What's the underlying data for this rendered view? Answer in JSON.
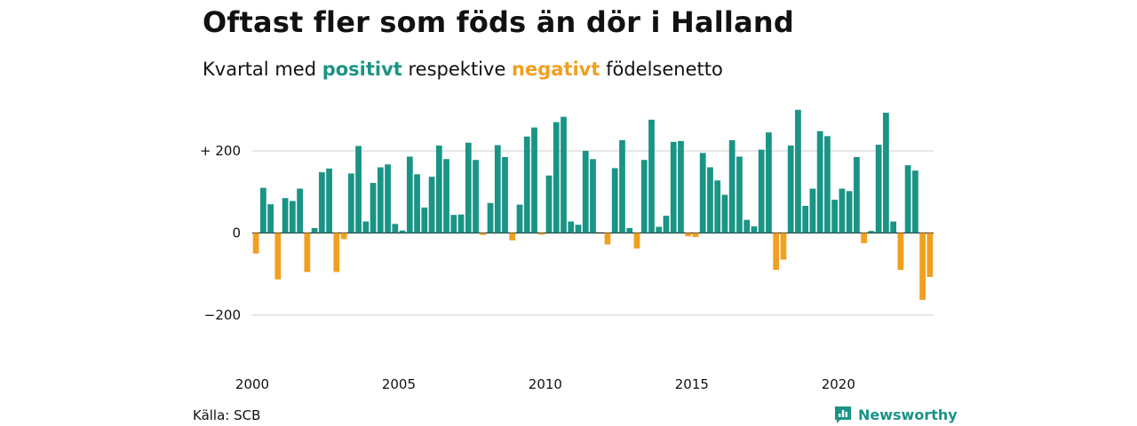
{
  "title": "Oftast fler som föds än dör i Halland",
  "subtitle": {
    "prefix": "Kvartal med ",
    "positive_word": "positivt",
    "middle": " respektive ",
    "negative_word": "negativt",
    "suffix": " födelsenetto"
  },
  "source": "Källa: SCB",
  "brand": "Newsworthy",
  "colors": {
    "positive": "#1a9485",
    "negative": "#f0a020",
    "grid": "#dddddd",
    "zero": "#222222"
  },
  "chart_data": {
    "type": "bar",
    "x_start": 2000,
    "period": "quarter",
    "ylim": [
      -300,
      330
    ],
    "yticks": [
      {
        "value": 200,
        "label": "+ 200"
      },
      {
        "value": 0,
        "label": "0"
      },
      {
        "value": -200,
        "label": "−200"
      }
    ],
    "xticks": [
      {
        "value": 2000,
        "label": "2000"
      },
      {
        "value": 2005,
        "label": "2005"
      },
      {
        "value": 2010,
        "label": "2010"
      },
      {
        "value": 2015,
        "label": "2015"
      },
      {
        "value": 2020,
        "label": "2020"
      }
    ],
    "values": [
      -50,
      110,
      70,
      -113,
      85,
      78,
      108,
      -95,
      12,
      148,
      157,
      -95,
      -15,
      145,
      212,
      28,
      122,
      160,
      167,
      22,
      6,
      186,
      143,
      62,
      137,
      213,
      180,
      44,
      45,
      220,
      178,
      -5,
      73,
      214,
      185,
      -18,
      69,
      235,
      257,
      -4,
      140,
      270,
      283,
      28,
      20,
      200,
      180,
      0,
      -28,
      158,
      226,
      12,
      -38,
      178,
      276,
      15,
      42,
      222,
      224,
      -8,
      -10,
      195,
      160,
      128,
      93,
      226,
      186,
      32,
      16,
      203,
      245,
      -90,
      -65,
      213,
      300,
      66,
      108,
      248,
      236,
      81,
      108,
      102,
      185,
      -25,
      5,
      215,
      293,
      28,
      -90,
      165,
      152,
      -163,
      -107
    ]
  }
}
